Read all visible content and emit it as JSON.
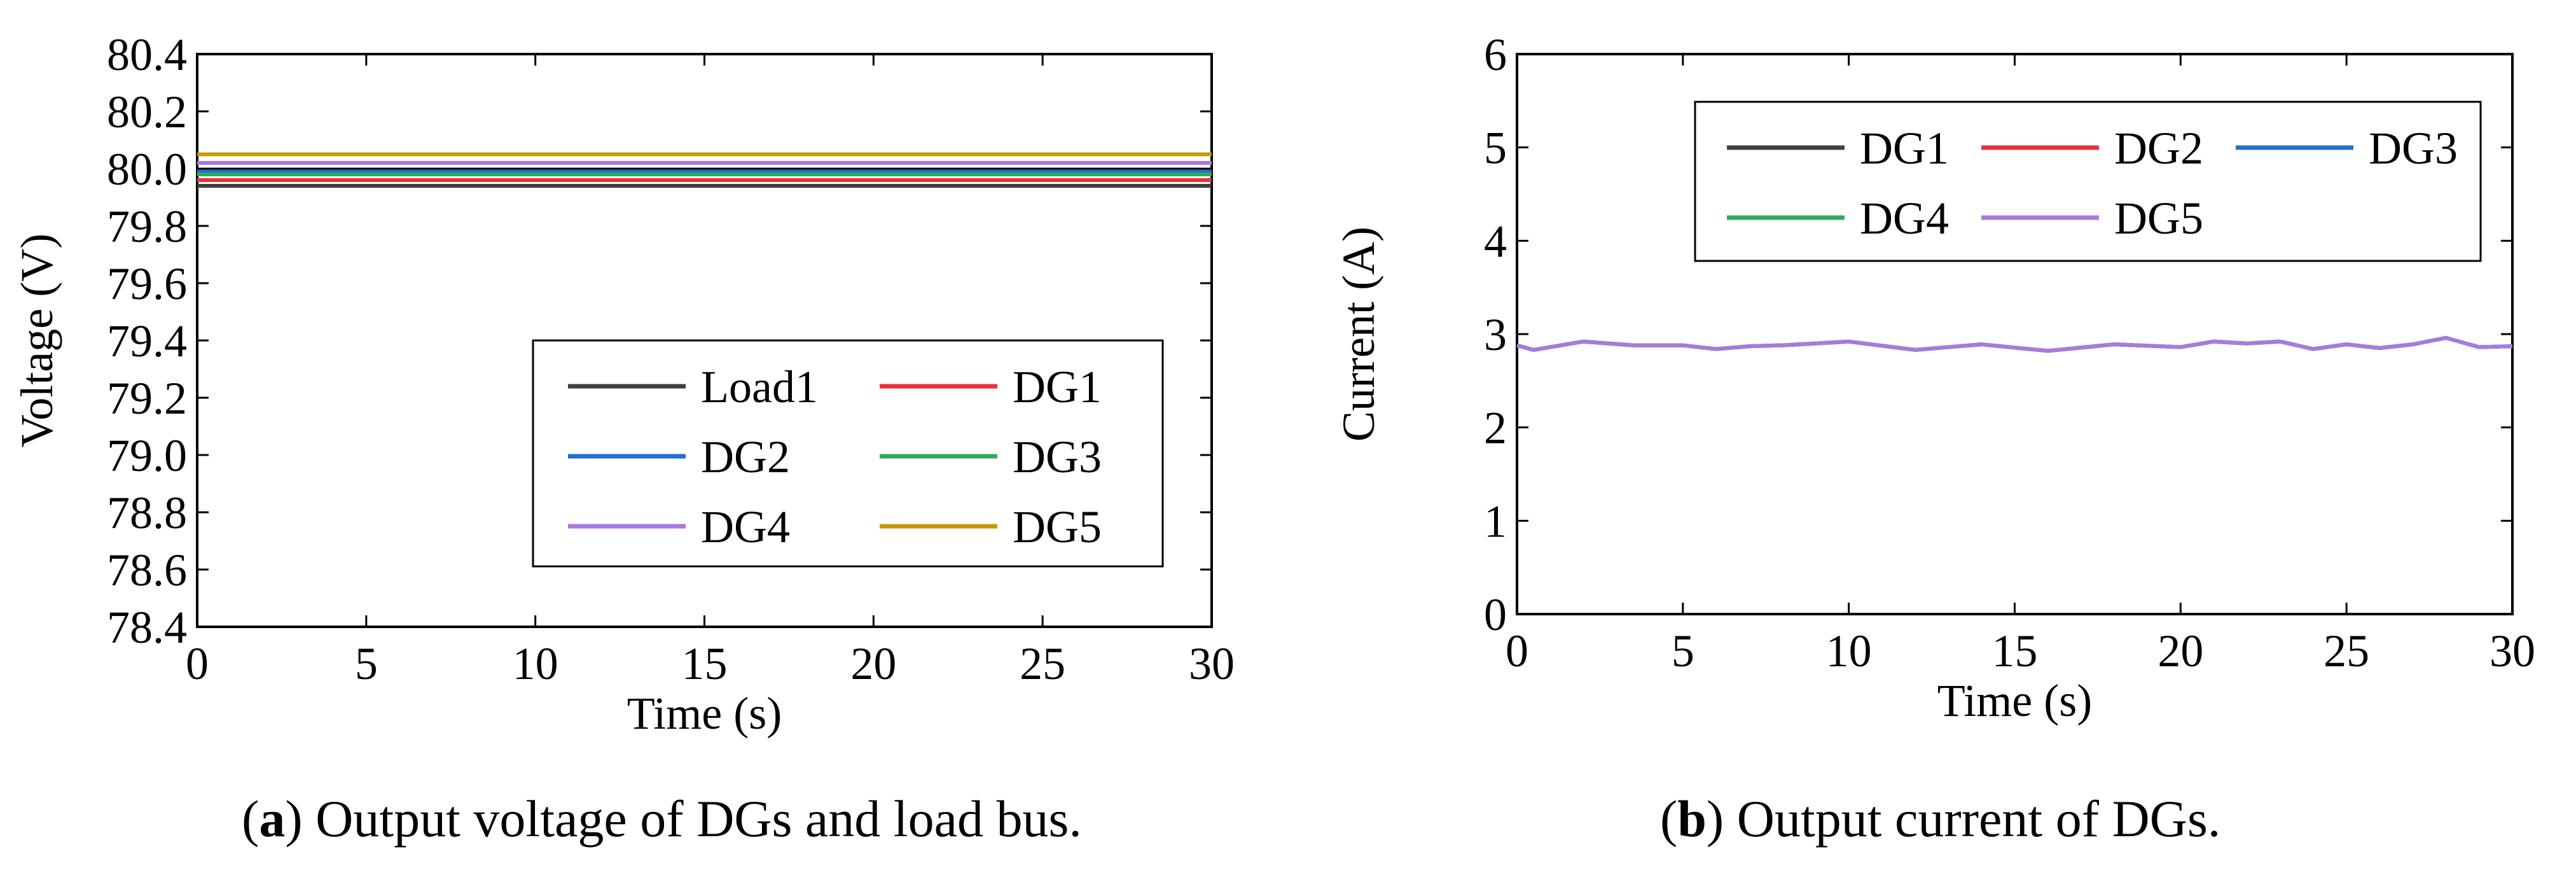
{
  "chart_data": [
    {
      "type": "line",
      "caption_letter": "a",
      "caption_text": "Output voltage of DGs and load bus.",
      "xlabel": "Time (s)",
      "ylabel": "Voltage (V)",
      "xlim": [
        0,
        30
      ],
      "ylim": [
        78.4,
        80.4
      ],
      "xticks": [
        "0",
        "5",
        "10",
        "15",
        "20",
        "25",
        "30"
      ],
      "yticks": [
        "78.4",
        "78.6",
        "78.8",
        "79.0",
        "79.2",
        "79.4",
        "79.6",
        "79.8",
        "80.0",
        "80.2",
        "80.4"
      ],
      "legend_position": "bottom-right",
      "x": [
        0,
        3,
        6,
        9,
        12,
        15,
        18,
        21,
        24,
        27,
        30
      ],
      "series": [
        {
          "name": "Load1",
          "color": "#404040",
          "values": [
            79.94,
            79.94,
            79.94,
            79.94,
            79.94,
            79.94,
            79.94,
            79.94,
            79.94,
            79.94,
            79.94
          ]
        },
        {
          "name": "DG1",
          "color": "#e8323c",
          "values": [
            79.96,
            79.96,
            79.96,
            79.96,
            79.96,
            79.96,
            79.96,
            79.96,
            79.96,
            79.96,
            79.96
          ]
        },
        {
          "name": "DG2",
          "color": "#1f6fd1",
          "values": [
            79.99,
            79.99,
            79.99,
            79.99,
            79.99,
            79.99,
            79.99,
            79.99,
            79.99,
            79.99,
            79.99
          ]
        },
        {
          "name": "DG3",
          "color": "#2eaa5c",
          "values": [
            79.98,
            79.98,
            79.98,
            79.98,
            79.98,
            79.98,
            79.98,
            79.98,
            79.98,
            79.98,
            79.98
          ]
        },
        {
          "name": "DG4",
          "color": "#a87adf",
          "values": [
            80.02,
            80.02,
            80.02,
            80.02,
            80.02,
            80.02,
            80.02,
            80.02,
            80.02,
            80.02,
            80.02
          ]
        },
        {
          "name": "DG5",
          "color": "#c89a0a",
          "values": [
            80.05,
            80.05,
            80.05,
            80.05,
            80.05,
            80.05,
            80.05,
            80.05,
            80.05,
            80.05,
            80.05
          ]
        }
      ],
      "reference_line": {
        "value": 80.0,
        "color": "#000000"
      }
    },
    {
      "type": "line",
      "caption_letter": "b",
      "caption_text": "Output current of DGs.",
      "xlabel": "Time (s)",
      "ylabel": "Current (A)",
      "xlim": [
        0,
        30
      ],
      "ylim": [
        0,
        6
      ],
      "xticks": [
        "0",
        "5",
        "10",
        "15",
        "20",
        "25",
        "30"
      ],
      "yticks": [
        "0",
        "1",
        "2",
        "3",
        "4",
        "5",
        "6"
      ],
      "legend_position": "top-right",
      "x": [
        0,
        0.5,
        2,
        3.5,
        5,
        6,
        7,
        8,
        10,
        12,
        14,
        16,
        18,
        20,
        21,
        22,
        23,
        24,
        25,
        26,
        27,
        28,
        29,
        30
      ],
      "series": [
        {
          "name": "DG1",
          "color": "#404040",
          "values": [
            2.88,
            2.83,
            2.92,
            2.88,
            2.88,
            2.84,
            2.87,
            2.88,
            2.92,
            2.83,
            2.89,
            2.82,
            2.89,
            2.86,
            2.92,
            2.9,
            2.92,
            2.84,
            2.89,
            2.85,
            2.89,
            2.96,
            2.86,
            2.87
          ]
        },
        {
          "name": "DG2",
          "color": "#e8323c",
          "values": [
            2.88,
            2.83,
            2.92,
            2.88,
            2.88,
            2.84,
            2.87,
            2.88,
            2.92,
            2.83,
            2.89,
            2.82,
            2.89,
            2.86,
            2.92,
            2.9,
            2.92,
            2.84,
            2.89,
            2.85,
            2.89,
            2.96,
            2.86,
            2.87
          ]
        },
        {
          "name": "DG3",
          "color": "#1f6fd1",
          "values": [
            2.88,
            2.83,
            2.92,
            2.88,
            2.88,
            2.84,
            2.87,
            2.88,
            2.92,
            2.83,
            2.89,
            2.82,
            2.89,
            2.86,
            2.92,
            2.9,
            2.92,
            2.84,
            2.89,
            2.85,
            2.89,
            2.96,
            2.86,
            2.87
          ]
        },
        {
          "name": "DG4",
          "color": "#2eaa5c",
          "values": [
            2.88,
            2.83,
            2.92,
            2.88,
            2.88,
            2.84,
            2.87,
            2.88,
            2.92,
            2.83,
            2.89,
            2.82,
            2.89,
            2.86,
            2.92,
            2.9,
            2.92,
            2.84,
            2.89,
            2.85,
            2.89,
            2.96,
            2.86,
            2.87
          ]
        },
        {
          "name": "DG5",
          "color": "#a87adf",
          "values": [
            2.88,
            2.83,
            2.92,
            2.88,
            2.88,
            2.84,
            2.87,
            2.88,
            2.92,
            2.83,
            2.89,
            2.82,
            2.89,
            2.86,
            2.92,
            2.9,
            2.92,
            2.84,
            2.89,
            2.85,
            2.89,
            2.96,
            2.86,
            2.87
          ]
        }
      ]
    }
  ]
}
